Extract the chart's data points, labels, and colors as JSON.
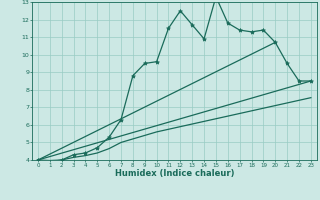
{
  "bg_color": "#cce8e4",
  "grid_color": "#99ccc4",
  "line_color": "#1a6b5a",
  "xlabel": "Humidex (Indice chaleur)",
  "xlim": [
    -0.5,
    23.5
  ],
  "ylim": [
    4,
    13
  ],
  "yticks": [
    4,
    5,
    6,
    7,
    8,
    9,
    10,
    11,
    12,
    13
  ],
  "xticks": [
    0,
    1,
    2,
    3,
    4,
    5,
    6,
    7,
    8,
    9,
    10,
    11,
    12,
    13,
    14,
    15,
    16,
    17,
    18,
    19,
    20,
    21,
    22,
    23
  ],
  "series": [
    {
      "x": [
        0,
        1,
        2,
        3,
        4,
        5,
        6,
        7,
        8,
        9,
        10,
        11,
        12,
        13,
        14,
        15,
        16,
        17,
        18,
        19,
        20,
        21,
        22,
        23
      ],
      "y": [
        4.0,
        3.9,
        4.0,
        4.3,
        4.4,
        4.7,
        5.3,
        6.3,
        8.8,
        9.5,
        9.6,
        11.5,
        12.5,
        11.7,
        10.9,
        13.3,
        11.8,
        11.4,
        11.3,
        11.4,
        10.7,
        9.5,
        8.5,
        8.5
      ],
      "marker": true,
      "lw": 0.9
    },
    {
      "x": [
        0,
        23
      ],
      "y": [
        4.0,
        8.5
      ],
      "marker": false,
      "lw": 0.9
    },
    {
      "x": [
        0,
        20
      ],
      "y": [
        4.0,
        10.7
      ],
      "marker": false,
      "lw": 0.9
    },
    {
      "x": [
        0,
        1,
        2,
        3,
        4,
        5,
        6,
        7,
        8,
        9,
        10,
        11,
        12,
        13,
        14,
        15,
        16,
        17,
        18,
        19,
        20,
        21,
        22,
        23
      ],
      "y": [
        4.0,
        3.97,
        4.0,
        4.15,
        4.25,
        4.4,
        4.65,
        5.0,
        5.2,
        5.4,
        5.6,
        5.75,
        5.9,
        6.05,
        6.2,
        6.35,
        6.5,
        6.65,
        6.8,
        6.95,
        7.1,
        7.25,
        7.4,
        7.55
      ],
      "marker": false,
      "lw": 0.9
    }
  ]
}
